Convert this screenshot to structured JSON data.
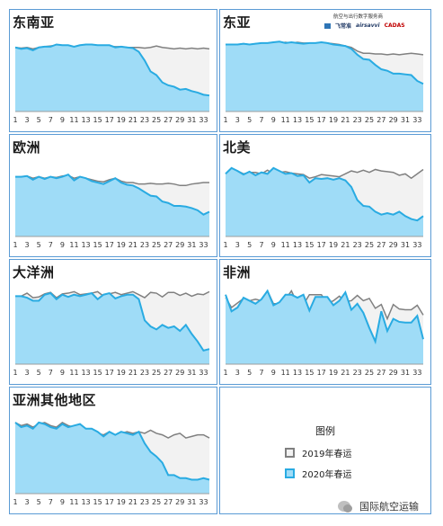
{
  "header": {
    "title": "航空与出行数字服务商",
    "logos": [
      {
        "text": "飞常准",
        "style": "plain"
      },
      {
        "text": "airsavvi",
        "style": "italic"
      },
      {
        "text": "CADAS",
        "style": "red"
      }
    ]
  },
  "legend": {
    "title": "图例",
    "items": [
      {
        "label": "2019年春运",
        "key": "2019"
      },
      {
        "label": "2020年春运",
        "key": "2020"
      }
    ]
  },
  "watermark": {
    "text": "国际航空运输"
  },
  "colors": {
    "s2019_line": "#808080",
    "s2019_fill": "#f2f2f2",
    "s2020_line": "#29abe2",
    "s2020_fill": "#9fdcf7",
    "border": "#5b9bd5"
  },
  "chart_data": [
    {
      "type": "area",
      "title": "东南亚",
      "x": [
        1,
        2,
        3,
        4,
        5,
        6,
        7,
        8,
        9,
        10,
        11,
        12,
        13,
        14,
        15,
        16,
        17,
        18,
        19,
        20,
        21,
        22,
        23,
        24,
        25,
        26,
        27,
        28,
        29,
        30,
        31,
        32,
        33,
        34
      ],
      "x_tick_labels": [
        "1",
        "3",
        "5",
        "7",
        "9",
        "11",
        "13",
        "15",
        "17",
        "19",
        "21",
        "23",
        "25",
        "27",
        "29",
        "31",
        "33"
      ],
      "ylim": [
        0,
        100
      ],
      "series": [
        {
          "name": "2019年春运",
          "values": [
            88,
            87,
            88,
            86,
            88,
            89,
            90,
            91,
            90,
            90,
            89,
            91,
            91,
            91,
            91,
            91,
            90,
            89,
            89,
            88,
            88,
            88,
            87,
            88,
            90,
            88,
            87,
            86,
            87,
            86,
            87,
            86,
            87,
            86
          ]
        },
        {
          "name": "2020年春运",
          "values": [
            88,
            86,
            87,
            84,
            88,
            89,
            89,
            92,
            91,
            91,
            89,
            91,
            92,
            92,
            91,
            91,
            91,
            88,
            89,
            88,
            87,
            82,
            70,
            55,
            50,
            40,
            36,
            34,
            30,
            31,
            28,
            26,
            23,
            22
          ]
        }
      ]
    },
    {
      "type": "area",
      "title": "东亚",
      "x": [
        1,
        2,
        3,
        4,
        5,
        6,
        7,
        8,
        9,
        10,
        11,
        12,
        13,
        14,
        15,
        16,
        17,
        18,
        19,
        20,
        21,
        22,
        23,
        24,
        25,
        26,
        27,
        28,
        29,
        30,
        31,
        32,
        33,
        34
      ],
      "x_tick_labels": [
        "1",
        "3",
        "5",
        "7",
        "9",
        "11",
        "13",
        "15",
        "17",
        "19",
        "21",
        "23",
        "25",
        "27",
        "29",
        "31",
        "33"
      ],
      "ylim": [
        0,
        100
      ],
      "series": [
        {
          "name": "2019年春运",
          "values": [
            92,
            92,
            92,
            93,
            92,
            93,
            94,
            94,
            95,
            94,
            95,
            94,
            95,
            94,
            94,
            94,
            95,
            94,
            93,
            92,
            90,
            88,
            83,
            80,
            80,
            79,
            79,
            78,
            79,
            78,
            79,
            80,
            79,
            78
          ]
        },
        {
          "name": "2020年春运",
          "values": [
            92,
            92,
            92,
            93,
            92,
            93,
            94,
            94,
            95,
            96,
            94,
            95,
            94,
            93,
            94,
            94,
            95,
            94,
            92,
            91,
            90,
            86,
            78,
            72,
            71,
            64,
            58,
            56,
            52,
            52,
            51,
            50,
            42,
            38
          ]
        }
      ]
    },
    {
      "type": "area",
      "title": "欧洲",
      "x": [
        1,
        2,
        3,
        4,
        5,
        6,
        7,
        8,
        9,
        10,
        11,
        12,
        13,
        14,
        15,
        16,
        17,
        18,
        19,
        20,
        21,
        22,
        23,
        24,
        25,
        26,
        27,
        28,
        29,
        30,
        31,
        32,
        33,
        34
      ],
      "x_tick_labels": [
        "1",
        "3",
        "5",
        "7",
        "9",
        "11",
        "13",
        "15",
        "17",
        "19",
        "21",
        "23",
        "25",
        "27",
        "29",
        "31",
        "33"
      ],
      "ylim": [
        0,
        100
      ],
      "series": [
        {
          "name": "2019年春运",
          "values": [
            82,
            82,
            83,
            80,
            82,
            80,
            82,
            81,
            83,
            84,
            80,
            82,
            80,
            78,
            76,
            75,
            78,
            80,
            76,
            74,
            74,
            72,
            72,
            73,
            72,
            72,
            73,
            72,
            70,
            70,
            72,
            73,
            74,
            74
          ]
        },
        {
          "name": "2020年春运",
          "values": [
            82,
            82,
            83,
            78,
            82,
            79,
            82,
            80,
            82,
            85,
            77,
            82,
            80,
            76,
            74,
            72,
            76,
            80,
            74,
            71,
            70,
            66,
            61,
            56,
            55,
            48,
            46,
            42,
            42,
            41,
            39,
            36,
            30,
            34
          ]
        }
      ]
    },
    {
      "type": "area",
      "title": "北美",
      "x": [
        1,
        2,
        3,
        4,
        5,
        6,
        7,
        8,
        9,
        10,
        11,
        12,
        13,
        14,
        15,
        16,
        17,
        18,
        19,
        20,
        21,
        22,
        23,
        24,
        25,
        26,
        27,
        28,
        29,
        30,
        31,
        32,
        33,
        34
      ],
      "x_tick_labels": [
        "1",
        "3",
        "5",
        "7",
        "9",
        "11",
        "13",
        "15",
        "17",
        "19",
        "21",
        "23",
        "25",
        "27",
        "29",
        "31",
        "33"
      ],
      "ylim": [
        0,
        100
      ],
      "series": [
        {
          "name": "2019年春运",
          "values": [
            86,
            92,
            90,
            86,
            88,
            88,
            86,
            91,
            86,
            88,
            89,
            87,
            86,
            85,
            80,
            82,
            85,
            84,
            83,
            82,
            86,
            90,
            88,
            91,
            88,
            92,
            90,
            89,
            88,
            84,
            86,
            80,
            86,
            92
          ]
        },
        {
          "name": "2020年春运",
          "values": [
            86,
            94,
            90,
            85,
            89,
            84,
            88,
            86,
            94,
            90,
            86,
            87,
            83,
            84,
            74,
            80,
            79,
            80,
            78,
            80,
            77,
            68,
            50,
            42,
            41,
            34,
            30,
            32,
            30,
            34,
            28,
            24,
            22,
            28
          ]
        }
      ]
    },
    {
      "type": "area",
      "title": "大洋洲",
      "x": [
        1,
        2,
        3,
        4,
        5,
        6,
        7,
        8,
        9,
        10,
        11,
        12,
        13,
        14,
        15,
        16,
        17,
        18,
        19,
        20,
        21,
        22,
        23,
        24,
        25,
        26,
        27,
        28,
        29,
        30,
        31,
        32,
        33,
        34
      ],
      "x_tick_labels": [
        "1",
        "3",
        "5",
        "7",
        "9",
        "11",
        "13",
        "15",
        "17",
        "19",
        "21",
        "23",
        "25",
        "27",
        "29",
        "31",
        "33"
      ],
      "ylim": [
        0,
        100
      ],
      "series": [
        {
          "name": "2019年春运",
          "values": [
            90,
            90,
            94,
            88,
            89,
            93,
            95,
            88,
            93,
            94,
            96,
            92,
            93,
            94,
            96,
            90,
            93,
            95,
            92,
            94,
            96,
            92,
            88,
            95,
            94,
            89,
            95,
            95,
            91,
            94,
            90,
            93,
            92,
            96
          ]
        },
        {
          "name": "2020年春运",
          "values": [
            90,
            90,
            88,
            84,
            84,
            92,
            94,
            86,
            92,
            89,
            92,
            90,
            92,
            94,
            86,
            92,
            94,
            87,
            90,
            92,
            92,
            86,
            58,
            50,
            46,
            52,
            48,
            50,
            44,
            52,
            40,
            30,
            18,
            20
          ]
        }
      ]
    },
    {
      "type": "area",
      "title": "非洲",
      "x": [
        1,
        2,
        3,
        4,
        5,
        6,
        7,
        8,
        9,
        10,
        11,
        12,
        13,
        14,
        15,
        16,
        17,
        18,
        19,
        20,
        21,
        22,
        23,
        24,
        25,
        26,
        27,
        28,
        29,
        30,
        31,
        32,
        33,
        34
      ],
      "x_tick_labels": [
        "1",
        "3",
        "5",
        "7",
        "9",
        "11",
        "13",
        "15",
        "17",
        "19",
        "21",
        "23",
        "25",
        "27",
        "29",
        "31",
        "33"
      ],
      "ylim": [
        0,
        100
      ],
      "series": [
        {
          "name": "2019年春运",
          "values": [
            88,
            75,
            81,
            87,
            84,
            86,
            84,
            97,
            80,
            80,
            86,
            97,
            80,
            79,
            92,
            92,
            92,
            80,
            84,
            90,
            83,
            84,
            91,
            84,
            87,
            74,
            79,
            60,
            79,
            73,
            72,
            72,
            78,
            65
          ]
        },
        {
          "name": "2020年春运",
          "values": [
            92,
            70,
            75,
            88,
            84,
            80,
            86,
            97,
            78,
            82,
            92,
            92,
            88,
            92,
            71,
            89,
            89,
            89,
            78,
            84,
            95,
            72,
            80,
            68,
            48,
            30,
            70,
            44,
            60,
            56,
            55,
            55,
            64,
            33
          ]
        }
      ]
    },
    {
      "type": "area",
      "title": "亚洲其他地区",
      "x": [
        1,
        2,
        3,
        4,
        5,
        6,
        7,
        8,
        9,
        10,
        11,
        12,
        13,
        14,
        15,
        16,
        17,
        18,
        19,
        20,
        21,
        22,
        23,
        24,
        25,
        26,
        27,
        28,
        29,
        30,
        31,
        32,
        33,
        34
      ],
      "x_tick_labels": [
        "1",
        "3",
        "5",
        "7",
        "9",
        "11",
        "13",
        "15",
        "17",
        "19",
        "21",
        "23",
        "25",
        "27",
        "29",
        "31",
        "33"
      ],
      "ylim": [
        0,
        100
      ],
      "series": [
        {
          "name": "2019年春运",
          "values": [
            92,
            88,
            90,
            86,
            90,
            92,
            88,
            86,
            92,
            88,
            86,
            90,
            80,
            82,
            78,
            76,
            80,
            74,
            78,
            80,
            78,
            80,
            78,
            82,
            78,
            76,
            72,
            76,
            78,
            72,
            74,
            76,
            76,
            72
          ]
        },
        {
          "name": "2020年春运",
          "values": [
            92,
            86,
            88,
            84,
            92,
            90,
            86,
            84,
            90,
            86,
            88,
            90,
            84,
            84,
            80,
            74,
            80,
            76,
            80,
            78,
            76,
            80,
            65,
            54,
            48,
            40,
            24,
            24,
            20,
            20,
            18,
            18,
            20,
            18
          ]
        }
      ]
    }
  ]
}
